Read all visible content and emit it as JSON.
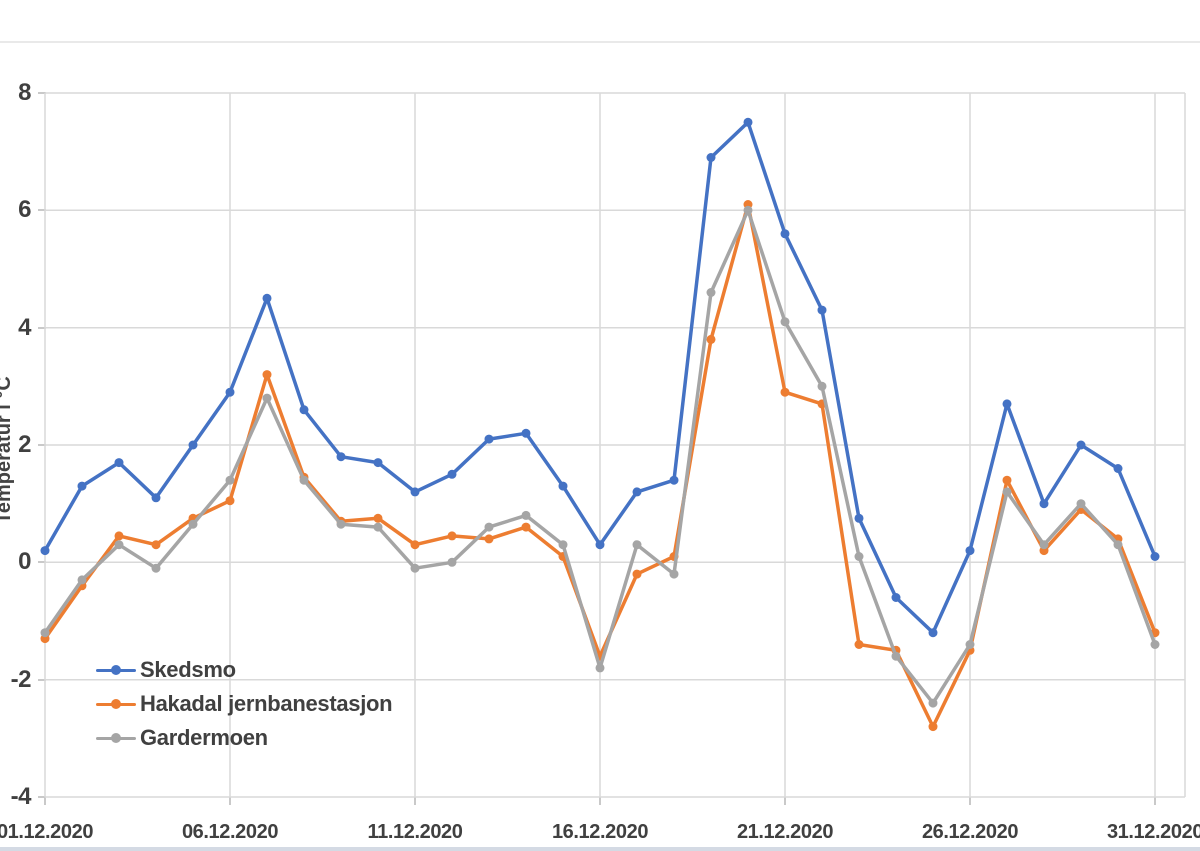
{
  "page": {
    "background": "#ffffff",
    "top_divider_color": "#e9e9e9",
    "bottom_band_color": "#d4dae4"
  },
  "chart_data": {
    "type": "line",
    "title": "",
    "xlabel": "",
    "ylabel": "Temperatur i °C",
    "ylim": [
      -4,
      8
    ],
    "yticks": [
      8,
      6,
      4,
      2,
      0,
      -2,
      -4
    ],
    "grid": true,
    "gridline_color": "#d9d9d9",
    "tick_color": "#c9c9c9",
    "text_color": "#404040",
    "legend_position": "inside-bottom-left",
    "marker_style": "circle",
    "x": [
      "01.12.2020",
      "02.12.2020",
      "03.12.2020",
      "04.12.2020",
      "05.12.2020",
      "06.12.2020",
      "07.12.2020",
      "08.12.2020",
      "09.12.2020",
      "10.12.2020",
      "11.12.2020",
      "12.12.2020",
      "13.12.2020",
      "14.12.2020",
      "15.12.2020",
      "16.12.2020",
      "17.12.2020",
      "18.12.2020",
      "19.12.2020",
      "20.12.2020",
      "21.12.2020",
      "22.12.2020",
      "23.12.2020",
      "24.12.2020",
      "25.12.2020",
      "26.12.2020",
      "27.12.2020",
      "28.12.2020",
      "29.12.2020",
      "30.12.2020",
      "31.12.2020"
    ],
    "xtick_labels": [
      "01.12.2020",
      "06.12.2020",
      "11.12.2020",
      "16.12.2020",
      "21.12.2020",
      "26.12.2020",
      "31.12.2020"
    ],
    "xtick_days": [
      1,
      6,
      11,
      16,
      21,
      26,
      31
    ],
    "series": [
      {
        "name": "Skedsmo",
        "color": "#4472C4",
        "values": [
          0.2,
          1.3,
          1.7,
          1.1,
          2.0,
          2.9,
          4.5,
          2.6,
          1.8,
          1.7,
          1.2,
          1.5,
          2.1,
          2.2,
          1.3,
          0.3,
          1.2,
          1.4,
          6.9,
          7.5,
          5.6,
          4.3,
          0.75,
          -0.6,
          -1.2,
          0.2,
          2.7,
          1.0,
          2.0,
          1.6,
          0.1
        ]
      },
      {
        "name": "Hakadal jernbanestasjon",
        "color": "#ED7D31",
        "values": [
          -1.3,
          -0.4,
          0.45,
          0.3,
          0.75,
          1.05,
          3.2,
          1.45,
          0.7,
          0.75,
          0.3,
          0.45,
          0.4,
          0.6,
          0.1,
          -1.6,
          -0.2,
          0.1,
          3.8,
          6.1,
          2.9,
          2.7,
          -1.4,
          -1.5,
          -2.8,
          -1.5,
          1.4,
          0.2,
          0.9,
          0.4,
          -1.2
        ]
      },
      {
        "name": "Gardermoen",
        "color": "#A5A5A5",
        "values": [
          -1.2,
          -0.3,
          0.3,
          -0.1,
          0.65,
          1.4,
          2.8,
          1.4,
          0.65,
          0.6,
          -0.1,
          0.0,
          0.6,
          0.8,
          0.3,
          -1.8,
          0.3,
          -0.2,
          4.6,
          6.0,
          4.1,
          3.0,
          0.1,
          -1.6,
          -2.4,
          -1.4,
          1.2,
          0.3,
          1.0,
          0.3,
          -1.4
        ]
      }
    ]
  }
}
